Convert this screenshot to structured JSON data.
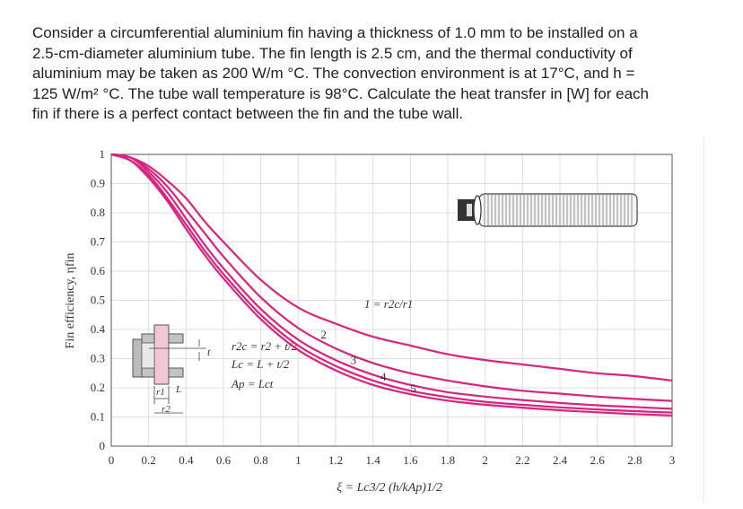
{
  "problem": {
    "lines": [
      "Consider a circumferential aluminium fin having a thickness of 1.0 mm to be installed on a",
      "2.5-cm-diameter aluminium tube. The fin length is 2.5 cm, and the thermal conductivity of",
      "aluminium may be taken as 200 W/m °C. The convection environment is at 17°C, and h =",
      "125 W/m² °C. The tube wall temperature is 98°C. Calculate the heat transfer in [W] for each",
      "fin if there is a perfect contact between the fin and the tube wall."
    ]
  },
  "chart_data": {
    "type": "line",
    "xlabel": "ξ = Lc3/2 (h/kAp)1/2",
    "ylabel": "Fin efficiency, ηfin",
    "xlim": [
      0,
      3
    ],
    "ylim": [
      0,
      1
    ],
    "x_ticks": [
      "0",
      "0.2",
      "0.4",
      "0.6",
      "0.8",
      "1",
      "1.2",
      "1.4",
      "1.6",
      "1.8",
      "2",
      "2.2",
      "2.4",
      "2.6",
      "2.8",
      "3"
    ],
    "y_ticks": [
      "0",
      "0.1",
      "0.2",
      "0.3",
      "0.4",
      "0.5",
      "0.6",
      "0.7",
      "0.8",
      "0.9",
      "1"
    ],
    "grid": true,
    "line_color": "#d8237f",
    "x": [
      0,
      0.1,
      0.2,
      0.3,
      0.4,
      0.5,
      0.6,
      0.8,
      1.0,
      1.2,
      1.4,
      1.6,
      1.8,
      2.0,
      2.2,
      2.4,
      2.6,
      2.8,
      3.0
    ],
    "series": [
      {
        "name": "1",
        "values": [
          1.0,
          0.99,
          0.96,
          0.91,
          0.85,
          0.77,
          0.7,
          0.57,
          0.475,
          0.42,
          0.375,
          0.345,
          0.315,
          0.295,
          0.28,
          0.265,
          0.25,
          0.24,
          0.225
        ]
      },
      {
        "name": "2",
        "values": [
          1.0,
          0.99,
          0.95,
          0.89,
          0.81,
          0.73,
          0.65,
          0.51,
          0.405,
          0.335,
          0.285,
          0.25,
          0.225,
          0.205,
          0.19,
          0.18,
          0.17,
          0.162,
          0.155
        ]
      },
      {
        "name": "3",
        "values": [
          1.0,
          0.99,
          0.94,
          0.87,
          0.78,
          0.69,
          0.61,
          0.47,
          0.365,
          0.295,
          0.245,
          0.21,
          0.185,
          0.17,
          0.158,
          0.148,
          0.14,
          0.134,
          0.128
        ]
      },
      {
        "name": "4",
        "values": [
          1.0,
          0.98,
          0.93,
          0.85,
          0.76,
          0.67,
          0.59,
          0.45,
          0.345,
          0.275,
          0.225,
          0.19,
          0.168,
          0.152,
          0.142,
          0.133,
          0.126,
          0.12,
          0.115
        ]
      },
      {
        "name": "5",
        "values": [
          1.0,
          0.98,
          0.92,
          0.84,
          0.745,
          0.655,
          0.575,
          0.435,
          0.33,
          0.26,
          0.21,
          0.178,
          0.156,
          0.142,
          0.132,
          0.123,
          0.116,
          0.11,
          0.105
        ]
      }
    ],
    "curve_ratio_label": "1 = r2c/r1",
    "annotations": [
      "r2c = r2 + t/2",
      "Lc = L + t/2",
      "Ap = Lct"
    ],
    "inset_labels": {
      "t": "t",
      "r1": "r1",
      "L": "L",
      "r2": "r2"
    }
  }
}
